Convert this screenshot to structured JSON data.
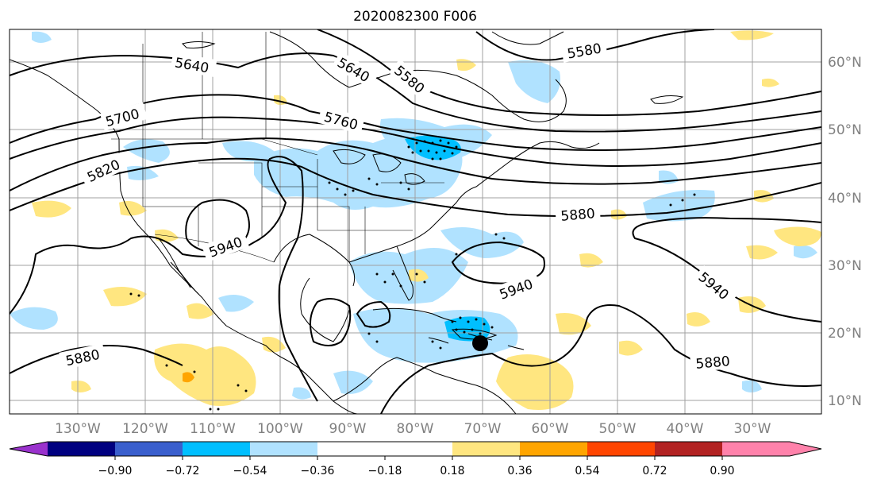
{
  "title": "2020082300 F006",
  "longitude_labels": [
    "130°W",
    "120°W",
    "110°W",
    "100°W",
    "90°W",
    "80°W",
    "70°W",
    "60°W",
    "50°W",
    "40°W",
    "30°W"
  ],
  "latitude_labels": [
    "60°N",
    "50°N",
    "40°N",
    "30°N",
    "20°N",
    "10°N"
  ],
  "contour_labels": [
    "5580",
    "5640",
    "5580",
    "5640",
    "5700",
    "5760",
    "5820",
    "5880",
    "5940",
    "5940",
    "5940",
    "5880",
    "5880"
  ],
  "colorbar": {
    "tick_labels": [
      "−0.90",
      "−0.72",
      "−0.54",
      "−0.36",
      "−0.18",
      "0.18",
      "0.36",
      "0.54",
      "0.72",
      "0.90"
    ],
    "colors": [
      "#9a32cd",
      "#000080",
      "#3a5fcd",
      "#00bfff",
      "#b0e2ff",
      "#ffffff",
      "#ffe680",
      "#ffa500",
      "#ff4500",
      "#b22222",
      "#ff82ab"
    ]
  },
  "colors": {
    "light_blue": "#b0e2ff",
    "blue": "#00bfff",
    "yellow": "#ffe680",
    "orange": "#ffa500",
    "gridline": "#a0a0a0",
    "axis_label": "#808080"
  },
  "markers": [
    "storm-center-marker"
  ]
}
